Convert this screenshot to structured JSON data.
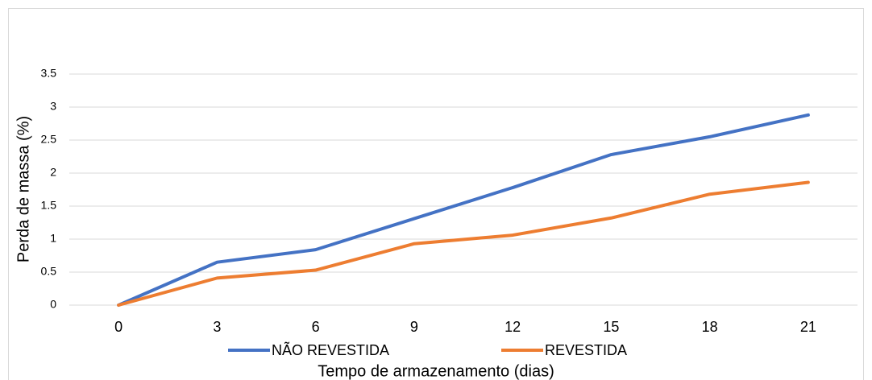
{
  "chart_data": {
    "type": "line",
    "x_label": "Tempo de armazenamento (dias)",
    "y_label": "Perda de massa (%)",
    "categories": [
      "0",
      "3",
      "6",
      "9",
      "12",
      "15",
      "18",
      "21"
    ],
    "series": [
      {
        "name": "NÃO REVESTIDA",
        "color": "#4472c4",
        "values": [
          0,
          0.65,
          0.84,
          1.31,
          1.78,
          2.28,
          2.55,
          2.88
        ]
      },
      {
        "name": "REVESTIDA",
        "color": "#ed7d31",
        "values": [
          0,
          0.41,
          0.53,
          0.93,
          1.06,
          1.32,
          1.68,
          1.86
        ]
      }
    ],
    "ylim": [
      0,
      3.5
    ],
    "yticks": [
      0,
      0.5,
      1,
      1.5,
      2,
      2.5,
      3,
      3.5
    ],
    "grid": true,
    "legend": "bottom"
  }
}
